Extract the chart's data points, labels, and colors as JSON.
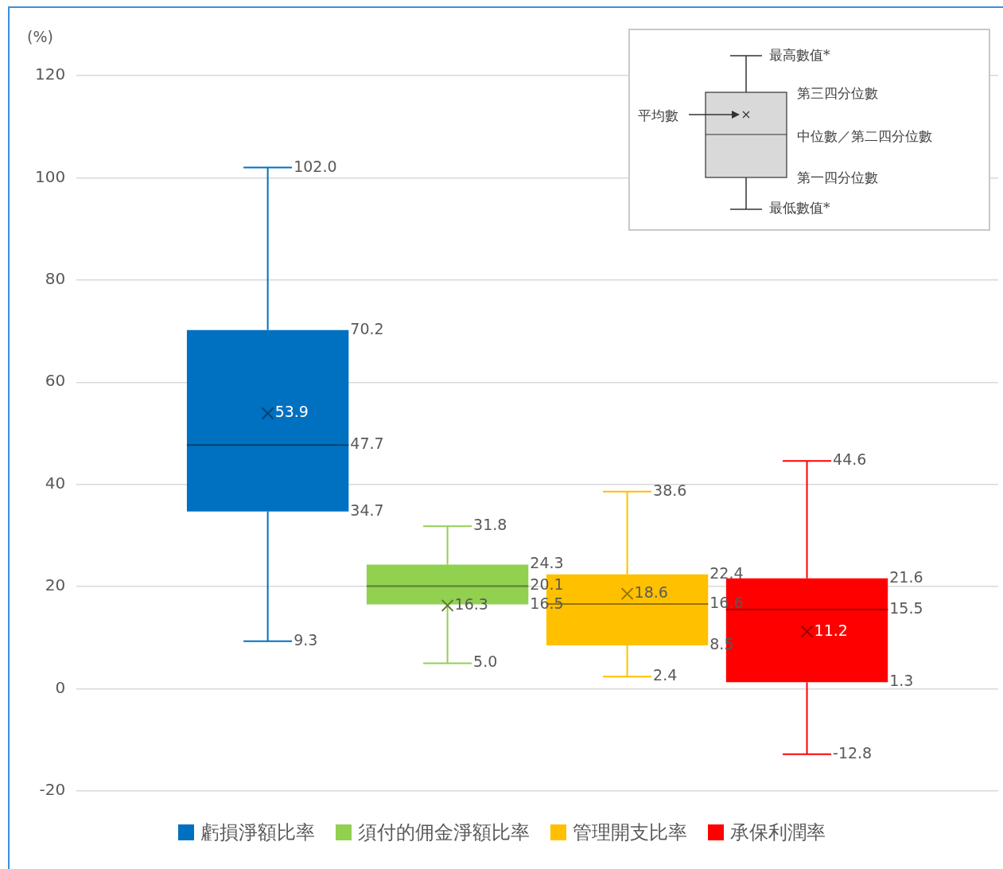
{
  "chart_data": {
    "type": "box",
    "ylabel": "(%)",
    "categories": [
      null
    ],
    "series": [
      {
        "name": "虧損淨額比率",
        "color": "#0070c0",
        "boxes": [
          {
            "low": 9.3,
            "q1": 34.7,
            "median": 47.7,
            "q3": 70.2,
            "high": 102.0,
            "mean": 53.9
          }
        ]
      },
      {
        "name": "須付的佣金淨額比率",
        "color": "#92d050",
        "boxes": [
          {
            "low": 5.0,
            "q1": 16.5,
            "median": 20.1,
            "q3": 24.3,
            "high": 31.8,
            "mean": 16.3
          }
        ]
      },
      {
        "name": "管理開支比率",
        "color": "#ffc000",
        "boxes": [
          {
            "low": 2.4,
            "q1": 8.5,
            "median": 16.6,
            "q3": 22.4,
            "high": 38.6,
            "mean": 18.6
          }
        ]
      },
      {
        "name": "承保利潤率",
        "color": "#ff0000",
        "boxes": [
          {
            "low": -12.8,
            "q1": 1.3,
            "median": 15.5,
            "q3": 21.6,
            "high": 44.6,
            "mean": 11.2
          }
        ]
      }
    ],
    "ylim": [
      -20,
      120
    ],
    "yticks": [
      -20,
      0,
      20,
      40,
      60,
      80,
      100,
      120
    ],
    "grid": "y",
    "legend": "bottom",
    "tick_labels": "y",
    "annotations": [
      "最高數值*",
      "第三四分位數",
      "平均數",
      "中位數／第二四分位數",
      "第一四分位數",
      "最低數值*",
      "102.0",
      "70.2",
      "53.9",
      "47.7",
      "34.7",
      "9.3",
      "31.8",
      "24.3",
      "16.3",
      "20.1",
      "16.5",
      "5.0",
      "38.6",
      "22.4",
      "18.6",
      "16.6",
      "8.5",
      "2.4",
      "44.6",
      "21.6",
      "11.2",
      "15.5",
      "1.3",
      "-12.8"
    ]
  }
}
